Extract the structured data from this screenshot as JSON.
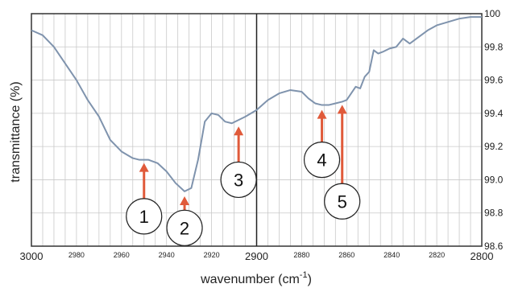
{
  "chart_data": {
    "type": "line",
    "title": "",
    "xlabel": "wavenumber (cm",
    "xlabel_sup": "-1",
    "xlabel_close": ")",
    "ylabel": "transmittance (%)",
    "xlim": [
      3000,
      2800
    ],
    "ylim": [
      98.6,
      100.0
    ],
    "x_ticks_major": [
      {
        "value": 3000,
        "label": "3000"
      },
      {
        "value": 2900,
        "label": "2900"
      },
      {
        "value": 2800,
        "label": "2800"
      }
    ],
    "x_ticks_minor": [
      {
        "value": 2980,
        "label": "2980"
      },
      {
        "value": 2960,
        "label": "2960"
      },
      {
        "value": 2940,
        "label": "2940"
      },
      {
        "value": 2920,
        "label": "2920"
      },
      {
        "value": 2880,
        "label": "2880"
      },
      {
        "value": 2860,
        "label": "2860"
      },
      {
        "value": 2840,
        "label": "2840"
      },
      {
        "value": 2820,
        "label": "2820"
      }
    ],
    "y_ticks": [
      {
        "value": 100.0,
        "label": "100"
      },
      {
        "value": 99.8,
        "label": "99.8"
      },
      {
        "value": 99.6,
        "label": "99.6"
      },
      {
        "value": 99.4,
        "label": "99.4"
      },
      {
        "value": 99.2,
        "label": "99.2"
      },
      {
        "value": 99.0,
        "label": "99.0"
      },
      {
        "value": 98.8,
        "label": "98.8"
      },
      {
        "value": 98.6,
        "label": "98.6"
      }
    ],
    "grid": true,
    "line_color": "#7f93ad",
    "arrow_color": "#e05a3a",
    "series": [
      {
        "x": [
          3000,
          2995,
          2990,
          2985,
          2980,
          2975,
          2970,
          2965,
          2960,
          2955,
          2952,
          2948,
          2944,
          2940,
          2936,
          2932,
          2929,
          2926,
          2923,
          2920,
          2917,
          2914,
          2911,
          2908,
          2905,
          2900,
          2895,
          2890,
          2885,
          2880,
          2877,
          2874,
          2871,
          2868,
          2865,
          2862,
          2860,
          2858,
          2856,
          2854,
          2852,
          2850,
          2848,
          2846,
          2844,
          2841,
          2838,
          2835,
          2832,
          2828,
          2824,
          2820,
          2815,
          2810,
          2805,
          2800
        ],
        "y": [
          99.9,
          99.87,
          99.8,
          99.7,
          99.6,
          99.48,
          99.38,
          99.24,
          99.17,
          99.13,
          99.12,
          99.12,
          99.1,
          99.05,
          98.98,
          98.93,
          98.95,
          99.12,
          99.35,
          99.4,
          99.39,
          99.35,
          99.34,
          99.36,
          99.38,
          99.42,
          99.48,
          99.52,
          99.54,
          99.53,
          99.49,
          99.46,
          99.45,
          99.45,
          99.46,
          99.47,
          99.48,
          99.52,
          99.56,
          99.55,
          99.62,
          99.65,
          99.78,
          99.76,
          99.77,
          99.79,
          99.8,
          99.85,
          99.82,
          99.86,
          99.9,
          99.93,
          99.95,
          99.97,
          99.98,
          99.98
        ]
      }
    ],
    "annotations": [
      {
        "label": "1",
        "x": 2950,
        "y": 99.12,
        "label_y": 98.78
      },
      {
        "label": "2",
        "x": 2932,
        "y": 98.92,
        "label_y": 98.71
      },
      {
        "label": "3",
        "x": 2908,
        "y": 99.34,
        "label_y": 99.0
      },
      {
        "label": "4",
        "x": 2871,
        "y": 99.44,
        "label_y": 99.12
      },
      {
        "label": "5",
        "x": 2862,
        "y": 99.47,
        "label_y": 98.87
      }
    ]
  }
}
